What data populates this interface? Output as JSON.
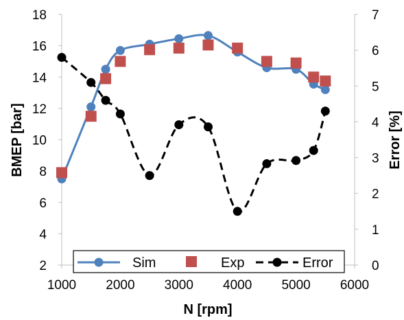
{
  "chart_data": {
    "type": "line",
    "xlabel": "N [rpm]",
    "ylabel": "BMEP [bar]",
    "y2label": "Error [%]",
    "xlim": [
      1000,
      6000
    ],
    "ylim": [
      2,
      18
    ],
    "y2lim": [
      0,
      7
    ],
    "xticks": [
      1000,
      2000,
      3000,
      4000,
      5000,
      6000
    ],
    "yticks": [
      2,
      4,
      6,
      8,
      10,
      12,
      14,
      16,
      18
    ],
    "y2ticks": [
      0,
      1,
      2,
      3,
      4,
      5,
      6,
      7
    ],
    "grid": false,
    "legend_position": "bottom",
    "series": [
      {
        "name": "Sim",
        "axis": "left",
        "style": "solid line with circle markers",
        "color": "#4f81bd",
        "x": [
          1000,
          1500,
          1750,
          2000,
          2500,
          3000,
          3500,
          4000,
          4500,
          5000,
          5300,
          5500
        ],
        "y": [
          7.5,
          12.1,
          14.5,
          15.7,
          16.1,
          16.45,
          16.65,
          15.6,
          14.6,
          14.5,
          13.55,
          13.2
        ]
      },
      {
        "name": "Exp",
        "axis": "left",
        "style": "square markers only",
        "color": "#c0504d",
        "x": [
          1000,
          1500,
          1750,
          2000,
          2500,
          3000,
          3500,
          4000,
          4500,
          5000,
          5300,
          5500
        ],
        "y": [
          7.9,
          11.5,
          13.9,
          15.0,
          15.75,
          15.85,
          16.05,
          15.85,
          15.0,
          14.9,
          14.0,
          13.75
        ]
      },
      {
        "name": "Error",
        "axis": "right",
        "style": "dashed line with circle markers",
        "color": "#000000",
        "x": [
          1000,
          1500,
          1750,
          2000,
          2500,
          3000,
          3500,
          4000,
          4500,
          5000,
          5300,
          5500
        ],
        "y": [
          5.8,
          5.1,
          4.6,
          4.22,
          2.5,
          3.92,
          3.86,
          1.5,
          2.83,
          2.92,
          3.2,
          4.3
        ]
      }
    ]
  }
}
